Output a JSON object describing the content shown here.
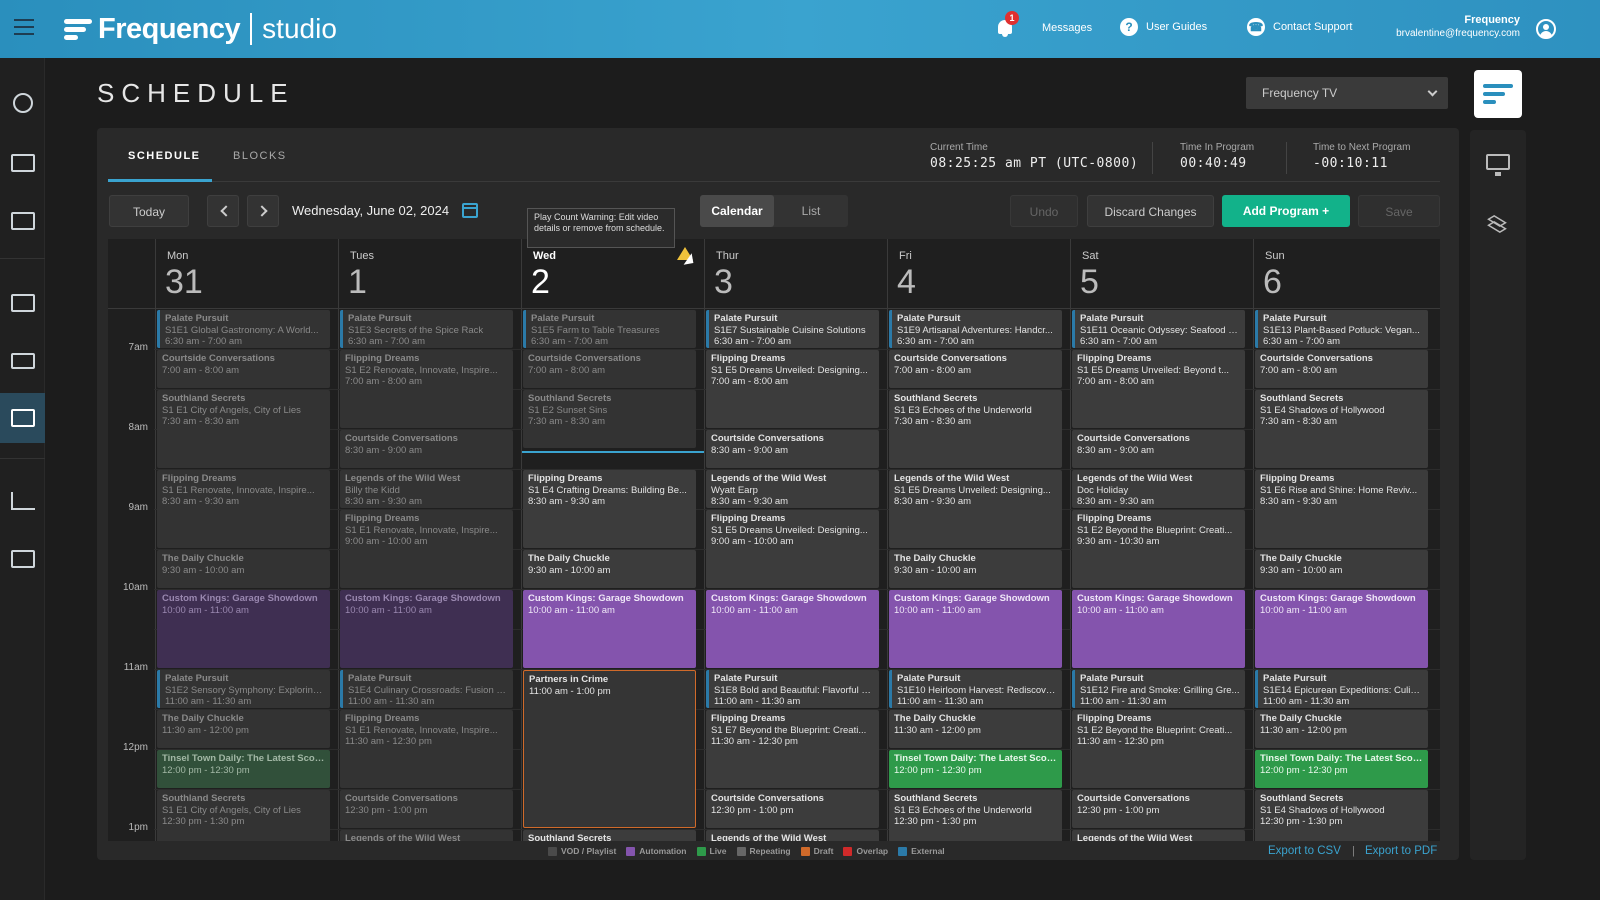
{
  "header": {
    "brand": "Frequency",
    "product": "studio",
    "messages_label": "Messages",
    "messages_count": "1",
    "guides_label": "User Guides",
    "support_label": "Contact Support",
    "user_org": "Frequency",
    "user_email": "brvalentine@frequency.com"
  },
  "page": {
    "title": "SCHEDULE",
    "channel": "Frequency TV"
  },
  "tabs": {
    "schedule": "SCHEDULE",
    "blocks": "BLOCKS"
  },
  "times": {
    "current_label": "Current Time",
    "current_value": "08:25:25 am PT (UTC-0800)",
    "in_program_label": "Time In Program",
    "in_program_value": "00:40:49",
    "next_label": "Time to Next Program",
    "next_value": "-00:10:11"
  },
  "toolbar": {
    "today": "Today",
    "date": "Wednesday, June 02, 2024",
    "view_calendar": "Calendar",
    "view_list": "List",
    "undo": "Undo",
    "discard": "Discard Changes",
    "add_program": "Add Program +",
    "save": "Save"
  },
  "tooltip": "Play Count Warning: Edit video details or remove from schedule.",
  "time_labels": [
    "7am",
    "8am",
    "9am",
    "10am",
    "11am",
    "12pm",
    "1pm"
  ],
  "days": [
    {
      "name": "Mon",
      "num": "31"
    },
    {
      "name": "Tues",
      "num": "1"
    },
    {
      "name": "Wed",
      "num": "2"
    },
    {
      "name": "Thur",
      "num": "3"
    },
    {
      "name": "Fri",
      "num": "4"
    },
    {
      "name": "Sat",
      "num": "5"
    },
    {
      "name": "Sun",
      "num": "6"
    }
  ],
  "events": [
    {
      "d": 0,
      "s": 0,
      "l": 2,
      "k": "past ext",
      "t": "Palate Pursuit",
      "sub": "S1E1 Global Gastronomy: A World...",
      "tm": "6:30 am - 7:00 am"
    },
    {
      "d": 0,
      "s": 2,
      "l": 2,
      "k": "past",
      "t": "Courtside Conversations",
      "sub": "",
      "tm": "7:00 am - 8:00 am"
    },
    {
      "d": 0,
      "s": 4,
      "l": 4,
      "k": "past",
      "t": "Southland Secrets",
      "sub": "S1 E1 City of Angels, City of Lies",
      "tm": "7:30 am - 8:30 am"
    },
    {
      "d": 0,
      "s": 8,
      "l": 4,
      "k": "past",
      "t": "Flipping Dreams",
      "sub": "S1 E1 Renovate, Innovate, Inspire...",
      "tm": "8:30 am - 9:30 am"
    },
    {
      "d": 0,
      "s": 12,
      "l": 2,
      "k": "past",
      "t": "The Daily Chuckle",
      "sub": "",
      "tm": "9:30 am - 10:00 am"
    },
    {
      "d": 0,
      "s": 14,
      "l": 4,
      "k": "auto past",
      "t": "Custom Kings: Garage Showdown",
      "sub": "",
      "tm": "10:00 am - 11:00 am"
    },
    {
      "d": 0,
      "s": 18,
      "l": 2,
      "k": "past ext",
      "t": "Palate Pursuit",
      "sub": "S1E2 Sensory Symphony: Exploring...",
      "tm": "11:00 am - 11:30 am"
    },
    {
      "d": 0,
      "s": 20,
      "l": 2,
      "k": "past",
      "t": "The Daily Chuckle",
      "sub": "",
      "tm": "11:30 am - 12:00 pm"
    },
    {
      "d": 0,
      "s": 22,
      "l": 2,
      "k": "live past",
      "t": "Tinsel Town Daily: The Latest Scoop",
      "sub": "",
      "tm": "12:00 pm - 12:30 pm"
    },
    {
      "d": 0,
      "s": 24,
      "l": 3,
      "k": "past",
      "t": "Southland Secrets",
      "sub": "S1 E1 City of Angels, City of Lies",
      "tm": "12:30 pm - 1:30 pm"
    },
    {
      "d": 1,
      "s": 0,
      "l": 2,
      "k": "past ext",
      "t": "Palate Pursuit",
      "sub": "S1E3 Secrets of the Spice Rack",
      "tm": "6:30 am - 7:00 am"
    },
    {
      "d": 1,
      "s": 2,
      "l": 4,
      "k": "past",
      "t": "Flipping Dreams",
      "sub": "S1 E2 Renovate, Innovate, Inspire...",
      "tm": "7:00 am - 8:00 am"
    },
    {
      "d": 1,
      "s": 6,
      "l": 2,
      "k": "past",
      "t": "Courtside Conversations",
      "sub": "",
      "tm": "8:30 am - 9:00 am"
    },
    {
      "d": 1,
      "s": 8,
      "l": 2,
      "k": "past",
      "t": "Legends of the Wild West",
      "sub": "Billy the Kidd",
      "tm": "8:30 am - 9:30 am"
    },
    {
      "d": 1,
      "s": 10,
      "l": 4,
      "k": "past",
      "t": "Flipping Dreams",
      "sub": "S1 E1 Renovate, Innovate, Inspire...",
      "tm": "9:00 am - 10:00 am"
    },
    {
      "d": 1,
      "s": 14,
      "l": 4,
      "k": "auto past",
      "t": "Custom Kings: Garage Showdown",
      "sub": "",
      "tm": "10:00 am - 11:00 am"
    },
    {
      "d": 1,
      "s": 18,
      "l": 2,
      "k": "past ext",
      "t": "Palate Pursuit",
      "sub": "S1E4 Culinary Crossroads: Fusion F...",
      "tm": "11:00 am - 11:30 am"
    },
    {
      "d": 1,
      "s": 20,
      "l": 4,
      "k": "past",
      "t": "Flipping Dreams",
      "sub": "S1 E1 Renovate, Innovate, Inspire...",
      "tm": "11:30 am - 12:30 pm"
    },
    {
      "d": 1,
      "s": 24,
      "l": 2,
      "k": "past",
      "t": "Courtside Conversations",
      "sub": "",
      "tm": "12:30 pm - 1:00 pm"
    },
    {
      "d": 1,
      "s": 26,
      "l": 1,
      "k": "past",
      "t": "Legends of the Wild West",
      "sub": "",
      "tm": ""
    },
    {
      "d": 2,
      "s": 0,
      "l": 2,
      "k": "past ext",
      "t": "Palate Pursuit",
      "sub": "S1E5 Farm to Table Treasures",
      "tm": "6:30 am - 7:00 am"
    },
    {
      "d": 2,
      "s": 2,
      "l": 2,
      "k": "past",
      "t": "Courtside Conversations",
      "sub": "",
      "tm": "7:00 am - 8:00 am"
    },
    {
      "d": 2,
      "s": 4,
      "l": 3,
      "k": "past",
      "t": "Southland Secrets",
      "sub": "S1 E2 Sunset Sins",
      "tm": "7:30 am - 8:30 am"
    },
    {
      "d": 2,
      "s": 8,
      "l": 4,
      "k": "future",
      "t": "Flipping Dreams",
      "sub": "S1 E4 Crafting Dreams: Building Be...",
      "tm": "8:30 am - 9:30 am"
    },
    {
      "d": 2,
      "s": 12,
      "l": 2,
      "k": "future",
      "t": "The Daily Chuckle",
      "sub": "",
      "tm": "9:30 am - 10:00 am"
    },
    {
      "d": 2,
      "s": 14,
      "l": 4,
      "k": "auto",
      "t": "Custom Kings: Garage Showdown",
      "sub": "",
      "tm": "10:00 am - 11:00 am"
    },
    {
      "d": 2,
      "s": 18,
      "l": 8,
      "k": "draft",
      "t": "Partners in Crime",
      "sub": "",
      "tm": "11:00 am - 1:00 pm"
    },
    {
      "d": 2,
      "s": 26,
      "l": 1,
      "k": "future",
      "t": "Southland Secrets",
      "sub": "",
      "tm": ""
    },
    {
      "d": 3,
      "s": 0,
      "l": 2,
      "k": "future ext",
      "t": "Palate Pursuit",
      "sub": "S1E7 Sustainable Cuisine Solutions",
      "tm": "6:30 am - 7:00 am"
    },
    {
      "d": 3,
      "s": 2,
      "l": 4,
      "k": "future",
      "t": "Flipping Dreams",
      "sub": "S1 E5  Dreams Unveiled: Designing...",
      "tm": "7:00 am - 8:00 am"
    },
    {
      "d": 3,
      "s": 6,
      "l": 2,
      "k": "future",
      "t": "Courtside Conversations",
      "sub": "",
      "tm": "8:30 am - 9:00 am"
    },
    {
      "d": 3,
      "s": 8,
      "l": 2,
      "k": "future",
      "t": "Legends of the Wild West",
      "sub": "Wyatt Earp",
      "tm": "8:30 am - 9:30 am"
    },
    {
      "d": 3,
      "s": 10,
      "l": 4,
      "k": "future",
      "t": "Flipping Dreams",
      "sub": "S1 E5  Dreams Unveiled: Designing...",
      "tm": "9:00 am - 10:00 am"
    },
    {
      "d": 3,
      "s": 14,
      "l": 4,
      "k": "auto",
      "t": "Custom Kings: Garage Showdown",
      "sub": "",
      "tm": "10:00 am - 11:00 am"
    },
    {
      "d": 3,
      "s": 18,
      "l": 2,
      "k": "future ext",
      "t": "Palate Pursuit",
      "sub": "S1E8 Bold and Beautiful: Flavorful C...",
      "tm": "11:00 am - 11:30 am"
    },
    {
      "d": 3,
      "s": 20,
      "l": 4,
      "k": "future",
      "t": "Flipping Dreams",
      "sub": "S1 E7 Beyond the Blueprint: Creati...",
      "tm": "11:30 am - 12:30 pm"
    },
    {
      "d": 3,
      "s": 24,
      "l": 2,
      "k": "future",
      "t": "Courtside Conversations",
      "sub": "",
      "tm": "12:30 pm - 1:00 pm"
    },
    {
      "d": 3,
      "s": 26,
      "l": 1,
      "k": "future",
      "t": "Legends of the Wild West",
      "sub": "",
      "tm": ""
    },
    {
      "d": 4,
      "s": 0,
      "l": 2,
      "k": "future ext",
      "t": "Palate Pursuit",
      "sub": "S1E9 Artisanal Adventures: Handcr...",
      "tm": "6:30 am - 7:00 am"
    },
    {
      "d": 4,
      "s": 2,
      "l": 2,
      "k": "future",
      "t": "Courtside Conversations",
      "sub": "",
      "tm": "7:00 am - 8:00 am"
    },
    {
      "d": 4,
      "s": 4,
      "l": 4,
      "k": "future",
      "t": "Southland Secrets",
      "sub": "S1 E3 Echoes of the Underworld",
      "tm": "7:30 am - 8:30 am"
    },
    {
      "d": 4,
      "s": 8,
      "l": 4,
      "k": "future",
      "t": "Legends of the Wild West",
      "sub": "S1 E5 Dreams Unveiled: Designing...",
      "tm": "8:30 am - 9:30 am"
    },
    {
      "d": 4,
      "s": 12,
      "l": 2,
      "k": "future",
      "t": "The Daily Chuckle",
      "sub": "",
      "tm": "9:30 am - 10:00 am"
    },
    {
      "d": 4,
      "s": 14,
      "l": 4,
      "k": "auto",
      "t": "Custom Kings: Garage Showdown",
      "sub": "",
      "tm": "10:00 am - 11:00 am"
    },
    {
      "d": 4,
      "s": 18,
      "l": 2,
      "k": "future ext",
      "t": "Palate Pursuit",
      "sub": "S1E10 Heirloom Harvest: Rediscove...",
      "tm": "11:00 am - 11:30 am"
    },
    {
      "d": 4,
      "s": 20,
      "l": 2,
      "k": "future",
      "t": "The Daily Chuckle",
      "sub": "",
      "tm": "11:30 am - 12:00 pm"
    },
    {
      "d": 4,
      "s": 22,
      "l": 2,
      "k": "live",
      "t": "Tinsel Town Daily: The Latest Scoop",
      "sub": "",
      "tm": "12:00 pm - 12:30 pm"
    },
    {
      "d": 4,
      "s": 24,
      "l": 3,
      "k": "future",
      "t": "Southland Secrets",
      "sub": "S1 E3 Echoes of the Underworld",
      "tm": "12:30 pm - 1:30 pm"
    },
    {
      "d": 5,
      "s": 0,
      "l": 2,
      "k": "future ext",
      "t": "Palate Pursuit",
      "sub": "S1E11 Oceanic Odyssey: Seafood S...",
      "tm": "6:30 am - 7:00 am"
    },
    {
      "d": 5,
      "s": 2,
      "l": 4,
      "k": "future",
      "t": "Flipping Dreams",
      "sub": "S1 E5  Dreams Unveiled: Beyond t...",
      "tm": "7:00 am - 8:00 am"
    },
    {
      "d": 5,
      "s": 6,
      "l": 2,
      "k": "future",
      "t": "Courtside Conversations",
      "sub": "",
      "tm": "8:30 am - 9:00 am"
    },
    {
      "d": 5,
      "s": 8,
      "l": 2,
      "k": "future",
      "t": "Legends of the Wild West",
      "sub": "Doc Holiday",
      "tm": "8:30 am - 9:30 am"
    },
    {
      "d": 5,
      "s": 10,
      "l": 4,
      "k": "future",
      "t": "Flipping Dreams",
      "sub": "S1 E2 Beyond the Blueprint: Creati...",
      "tm": "9:30 am - 10:30 am"
    },
    {
      "d": 5,
      "s": 14,
      "l": 4,
      "k": "auto",
      "t": "Custom Kings: Garage Showdown",
      "sub": "",
      "tm": "10:00 am - 11:00 am"
    },
    {
      "d": 5,
      "s": 18,
      "l": 2,
      "k": "future ext",
      "t": "Palate Pursuit",
      "sub": "S1E12 Fire and Smoke: Grilling Gre...",
      "tm": "11:00 am - 11:30 am"
    },
    {
      "d": 5,
      "s": 20,
      "l": 4,
      "k": "future",
      "t": "Flipping Dreams",
      "sub": "S1 E2 Beyond the Blueprint: Creati...",
      "tm": "11:30 am - 12:30 pm"
    },
    {
      "d": 5,
      "s": 24,
      "l": 2,
      "k": "future",
      "t": "Courtside Conversations",
      "sub": "",
      "tm": "12:30 pm - 1:00 pm"
    },
    {
      "d": 5,
      "s": 26,
      "l": 1,
      "k": "future",
      "t": "Legends of the Wild West",
      "sub": "",
      "tm": ""
    },
    {
      "d": 6,
      "s": 0,
      "l": 2,
      "k": "future ext",
      "t": "Palate Pursuit",
      "sub": "S1E13 Plant-Based Potluck: Vegan...",
      "tm": "6:30 am - 7:00 am"
    },
    {
      "d": 6,
      "s": 2,
      "l": 2,
      "k": "future",
      "t": "Courtside Conversations",
      "sub": "",
      "tm": "7:00 am - 8:00 am"
    },
    {
      "d": 6,
      "s": 4,
      "l": 4,
      "k": "future",
      "t": "Southland Secrets",
      "sub": "S1 E4 Shadows of Hollywood",
      "tm": "7:30 am - 8:30 am"
    },
    {
      "d": 6,
      "s": 8,
      "l": 4,
      "k": "future",
      "t": "Flipping Dreams",
      "sub": "S1 E6 Rise and Shine: Home Reviv...",
      "tm": "8:30 am - 9:30 am"
    },
    {
      "d": 6,
      "s": 12,
      "l": 2,
      "k": "future",
      "t": "The Daily Chuckle",
      "sub": "",
      "tm": "9:30 am - 10:00 am"
    },
    {
      "d": 6,
      "s": 14,
      "l": 4,
      "k": "auto",
      "t": "Custom Kings: Garage Showdown",
      "sub": "",
      "tm": "10:00 am - 11:00 am"
    },
    {
      "d": 6,
      "s": 18,
      "l": 2,
      "k": "future ext",
      "t": "Palate Pursuit",
      "sub": "S1E14 Epicurean Expeditions: Culin...",
      "tm": "11:00 am - 11:30 am"
    },
    {
      "d": 6,
      "s": 20,
      "l": 2,
      "k": "future",
      "t": "The Daily Chuckle",
      "sub": "",
      "tm": "11:30 am - 12:00 pm"
    },
    {
      "d": 6,
      "s": 22,
      "l": 2,
      "k": "live",
      "t": "Tinsel Town Daily: The Latest Scoop",
      "sub": "",
      "tm": "12:00 pm - 12:30 pm"
    },
    {
      "d": 6,
      "s": 24,
      "l": 3,
      "k": "future",
      "t": "Southland Secrets",
      "sub": "S1 E4 Shadows of Hollywood",
      "tm": "12:30 pm - 1:30 pm"
    }
  ],
  "legend": [
    {
      "label": "VOD / Playlist",
      "color": "#4a4a4a"
    },
    {
      "label": "Automation",
      "color": "#8454ad"
    },
    {
      "label": "Live",
      "color": "#2e9a4a"
    },
    {
      "label": "Repeating",
      "color": "#666666"
    },
    {
      "label": "Draft",
      "color": "#d06a2a"
    },
    {
      "label": "Overlap",
      "color": "#d02a2a"
    },
    {
      "label": "External",
      "color": "#2b7aa8"
    }
  ],
  "export": {
    "csv": "Export to CSV",
    "sep": "|",
    "pdf": "Export to PDF"
  }
}
